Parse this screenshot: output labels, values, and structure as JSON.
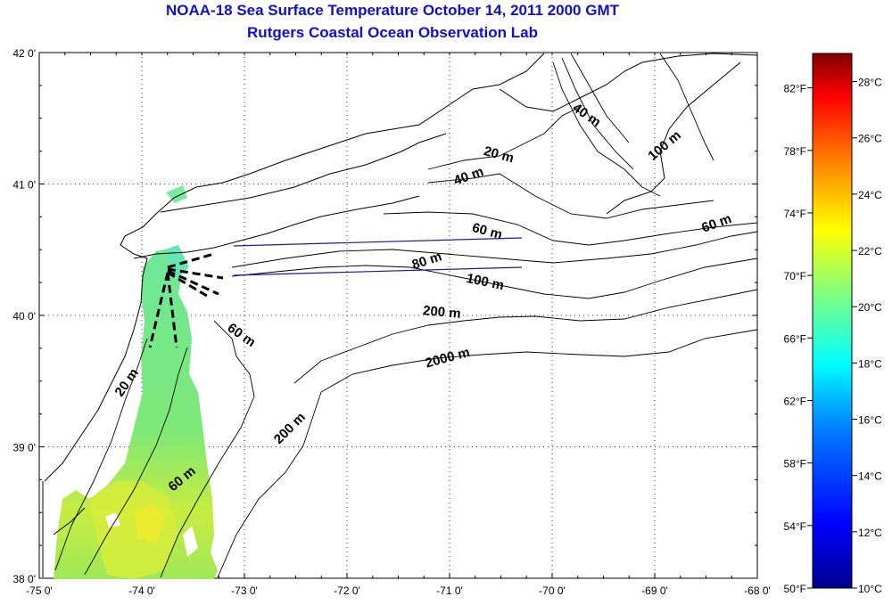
{
  "title_line1": "NOAA-18 Sea Surface Temperature October 14, 2011 2000 GMT",
  "title_line2": "Rutgers Coastal Ocean Observation Lab",
  "lat_labels": [
    "42 0'",
    "41 0'",
    "40 0'",
    "39 0'",
    "38 0'"
  ],
  "lat_values": [
    42,
    41,
    40,
    39,
    38
  ],
  "lon_labels": [
    "-75 0'",
    "-74 0'",
    "-73 0'",
    "-72 0'",
    "-71 0'",
    "-70 0'",
    "-69 0'",
    "-68 0'"
  ],
  "lon_values": [
    -75,
    -74,
    -73,
    -72,
    -71,
    -70,
    -69,
    -68
  ],
  "depth_labels": [
    "40 m",
    "100 m",
    "20 m",
    "40 m",
    "60 m",
    "60 m",
    "80 m",
    "100 m",
    "200 m",
    "2000 m",
    "60 m",
    "20 m",
    "200 m",
    "60 m"
  ],
  "colorbar": {
    "fahrenheit_labels": [
      "82°F",
      "78°F",
      "74°F",
      "70°F",
      "66°F",
      "62°F",
      "58°F",
      "54°F",
      "50°F"
    ],
    "celsius_labels": [
      "28°C",
      "26°C",
      "24°C",
      "22°C",
      "20°C",
      "18°C",
      "16°C",
      "14°C",
      "12°C",
      "10°C"
    ],
    "min_c": 10,
    "max_c": 29,
    "colors": [
      "#00008f",
      "#0000ff",
      "#0080ff",
      "#00ffff",
      "#80ff80",
      "#ffff00",
      "#ff8000",
      "#ff0000",
      "#800000"
    ]
  }
}
